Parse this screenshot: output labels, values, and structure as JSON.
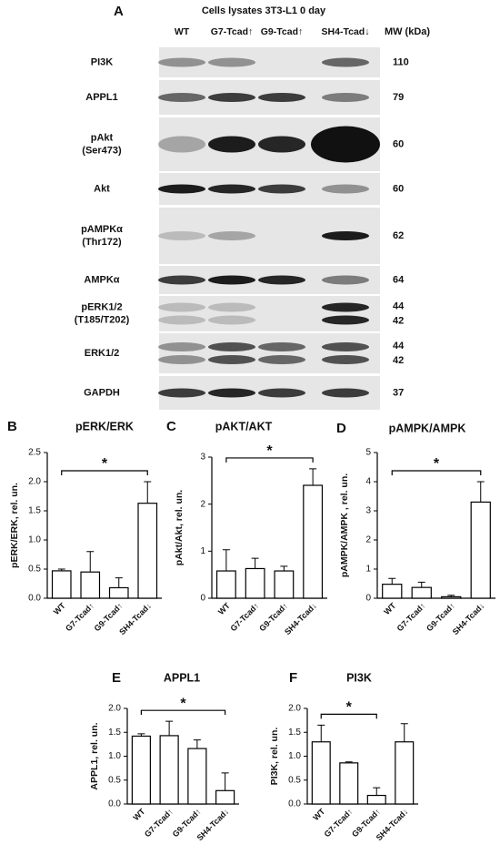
{
  "blot": {
    "panel": "A",
    "title": "Cells lysates 3T3-L1 0 day",
    "lanes": [
      "WT",
      "G7-Tcad↑",
      "G9-Tcad↑",
      "SH4-Tcad↓"
    ],
    "mw_header": "MW (kDa)",
    "rows": [
      {
        "label": [
          "PI3K"
        ],
        "mw": [
          110
        ]
      },
      {
        "label": [
          "APPL1"
        ],
        "mw": [
          79
        ]
      },
      {
        "label": [
          "pAkt",
          "(Ser473)"
        ],
        "mw": [
          60
        ]
      },
      {
        "label": [
          "Akt"
        ],
        "mw": [
          60
        ]
      },
      {
        "label": [
          "pAMPKα",
          "(Thr172)"
        ],
        "mw": [
          62
        ]
      },
      {
        "label": [
          "AMPKα"
        ],
        "mw": [
          64
        ]
      },
      {
        "label": [
          "pERK1/2",
          "(T185/T202)"
        ],
        "mw": [
          44,
          42
        ]
      },
      {
        "label": [
          "ERK1/2"
        ],
        "mw": [
          44,
          42
        ]
      },
      {
        "label": [
          "GAPDH"
        ],
        "mw": [
          37
        ]
      }
    ]
  },
  "chart_data": [
    {
      "type": "bar",
      "panel": "B",
      "title": "pERK/ERK",
      "ylabel": "pERK/ERK, rel. un.",
      "categories": [
        "WT",
        "G7-Tcad↑",
        "G9-Tcad↑",
        "SH4-Tcad↓"
      ],
      "values": [
        0.47,
        0.45,
        0.18,
        1.63
      ],
      "errors": [
        0.03,
        0.35,
        0.17,
        0.37
      ],
      "color": "#ffffff",
      "ylim": [
        0,
        2.5
      ],
      "yticks": [
        {
          "value": 0,
          "label": "0.0"
        },
        0.5,
        {
          "value": 1,
          "label": "1.0"
        },
        1.5,
        {
          "value": 2,
          "label": "2.0"
        },
        2.5
      ],
      "significance": {
        "label": "*",
        "from": 0,
        "to": 3
      }
    },
    {
      "type": "bar",
      "panel": "C",
      "title": "pAKT/AKT",
      "ylabel": "pAkt/Akt, rel. un.",
      "categories": [
        "WT",
        "G7-Tcad↑",
        "G9-Tcad↑",
        "SH4-Tcad↓"
      ],
      "values": [
        0.58,
        0.63,
        0.58,
        2.4
      ],
      "errors": [
        0.45,
        0.22,
        0.1,
        0.35
      ],
      "color": "#ffffff",
      "ylim": [
        0,
        3
      ],
      "yticks": [
        0,
        1,
        2,
        3
      ],
      "significance": {
        "label": "*",
        "from": 0,
        "to": 3
      }
    },
    {
      "type": "bar",
      "panel": "D",
      "title": "pAMPK/AMPK",
      "ylabel": "pAMPK/AMPK , rel. un.",
      "categories": [
        "WT",
        "G7-Tcad↑",
        "G9-Tcad↑",
        "SH4-Tcad↓"
      ],
      "values": [
        0.48,
        0.37,
        0.05,
        3.3
      ],
      "errors": [
        0.2,
        0.18,
        0.05,
        0.7
      ],
      "color": "#ffffff",
      "ylim": [
        0,
        5
      ],
      "yticks": [
        0,
        1,
        2,
        3,
        4,
        5
      ],
      "significance": {
        "label": "*",
        "from": 0,
        "to": 3
      }
    },
    {
      "type": "bar",
      "panel": "E",
      "title": "APPL1",
      "ylabel": "APPL1, rel. un.",
      "categories": [
        "WT",
        "G7-Tcad↑",
        "G9-Tcad↑",
        "SH4-Tcad↓"
      ],
      "values": [
        1.42,
        1.43,
        1.16,
        0.28
      ],
      "errors": [
        0.05,
        0.3,
        0.18,
        0.37
      ],
      "color": "#ffffff",
      "ylim": [
        0,
        2
      ],
      "yticks": [
        {
          "value": 0,
          "label": "0.0"
        },
        0.5,
        {
          "value": 1,
          "label": "1.0"
        },
        1.5,
        {
          "value": 2,
          "label": "2.0"
        }
      ],
      "significance": {
        "label": "*",
        "from": 0,
        "to": 3
      }
    },
    {
      "type": "bar",
      "panel": "F",
      "title": "PI3K",
      "ylabel": "PI3K, rel. un.",
      "categories": [
        "WT",
        "G7-Tcad↑",
        "G9-Tcad↑",
        "SH4-Tcad↓"
      ],
      "values": [
        1.3,
        0.86,
        0.18,
        1.3
      ],
      "errors": [
        0.35,
        0.02,
        0.16,
        0.38
      ],
      "color": "#ffffff",
      "ylim": [
        0,
        2
      ],
      "yticks": [
        {
          "value": 0,
          "label": "0.0"
        },
        0.5,
        {
          "value": 1,
          "label": "1.0"
        },
        1.5,
        {
          "value": 2,
          "label": "2.0"
        }
      ],
      "significance": {
        "label": "*",
        "from": 0,
        "to": 2
      }
    }
  ]
}
